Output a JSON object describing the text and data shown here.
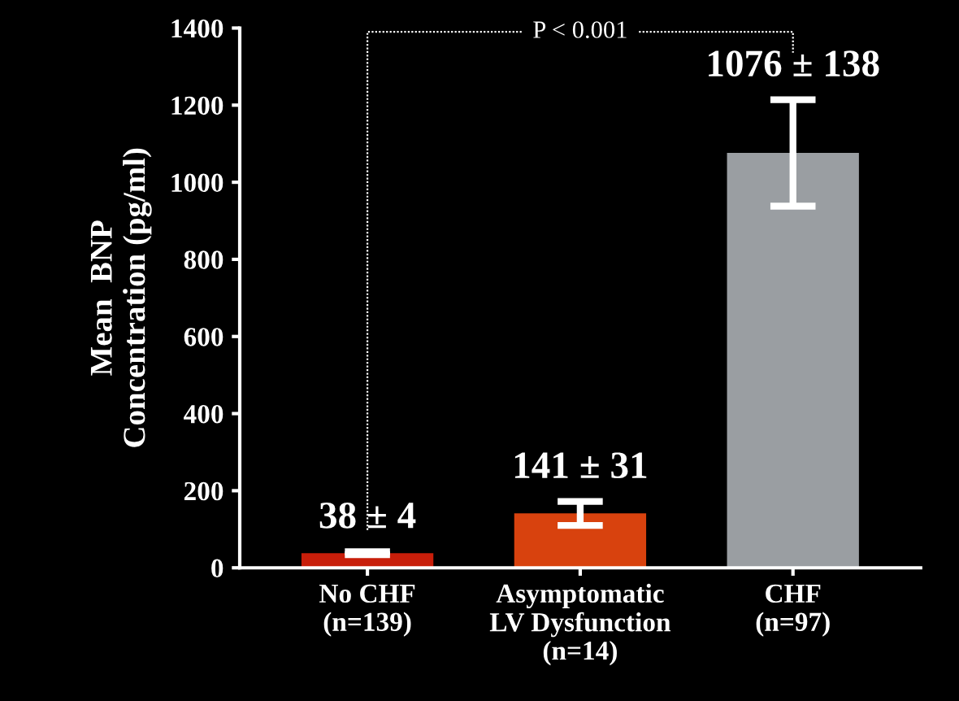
{
  "chart_data": {
    "type": "bar",
    "ylabel": "Mean  BNP\nConcentration (pg/ml)",
    "categories": [
      "No CHF\n(n=139)",
      "Asymptomatic\nLV Dysfunction\n(n=14)",
      "CHF\n(n=97)"
    ],
    "values": [
      38,
      141,
      1076
    ],
    "errors": [
      4,
      31,
      138
    ],
    "value_labels": [
      "38 ± 4",
      "141 ± 31",
      "1076 ± 138"
    ],
    "colors": [
      "#c81e0a",
      "#d8420e",
      "#9a9ea2"
    ],
    "ylim": [
      0,
      1400
    ],
    "yticks": [
      0,
      200,
      400,
      600,
      800,
      1000,
      1200,
      1400
    ],
    "annotations": [
      "P < 0.001"
    ],
    "grid": false
  }
}
